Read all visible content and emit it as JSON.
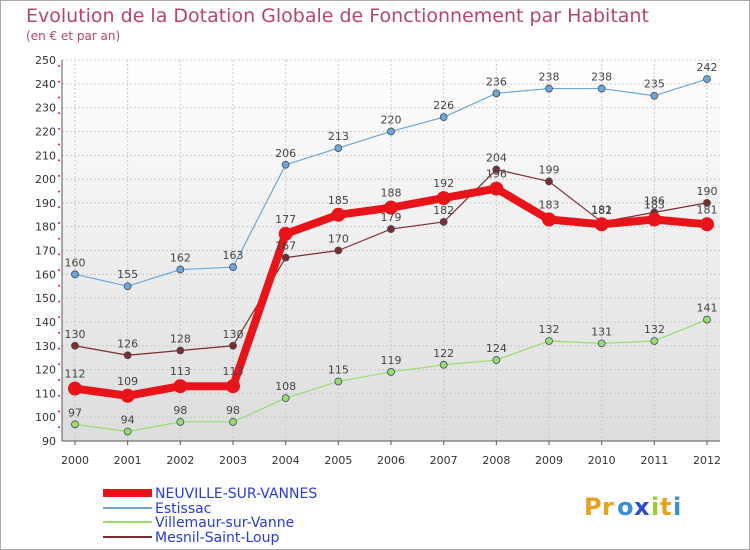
{
  "chart_data": {
    "type": "line",
    "title": "Evolution de la Dotation Globale de Fonctionnement par Habitant",
    "subtitle": "(en € et par an)",
    "xlabel": "",
    "ylabel": "",
    "x": [
      "2000",
      "2001",
      "2002",
      "2003",
      "2004",
      "2005",
      "2006",
      "2007",
      "2008",
      "2009",
      "2010",
      "2011",
      "2012"
    ],
    "ylim": [
      90,
      250
    ],
    "yticks": [
      90,
      100,
      110,
      120,
      130,
      140,
      150,
      160,
      170,
      180,
      190,
      200,
      210,
      220,
      230,
      240,
      250
    ],
    "grid": true,
    "legend": "bottom-left",
    "series": [
      {
        "name": "NEUVILLE-SUR-VANNES",
        "color": "#e8141a",
        "values": [
          112,
          109,
          113,
          113,
          177,
          185,
          188,
          192,
          196,
          183,
          181,
          183,
          181
        ]
      },
      {
        "name": "Estissac",
        "color": "#6ea6d8",
        "values": [
          160,
          155,
          162,
          163,
          206,
          213,
          220,
          226,
          236,
          238,
          238,
          235,
          242
        ]
      },
      {
        "name": "Villemaur-sur-Vanne",
        "color": "#98dc6e",
        "values": [
          97,
          94,
          98,
          98,
          108,
          115,
          119,
          122,
          124,
          132,
          131,
          132,
          141
        ]
      },
      {
        "name": "Mesnil-Saint-Loup",
        "color": "#7a2e2e",
        "values": [
          130,
          126,
          128,
          130,
          167,
          170,
          179,
          182,
          204,
          199,
          182,
          186,
          190
        ]
      }
    ]
  },
  "brand": {
    "letters": [
      "P",
      "r",
      "o",
      "x",
      "i",
      "t",
      "i"
    ],
    "colors": [
      "#e8a21b",
      "#e8a21b",
      "#3a8fd4",
      "#2a4fc9",
      "#9fce2b",
      "#e8a21b",
      "#3a8fd4"
    ]
  }
}
